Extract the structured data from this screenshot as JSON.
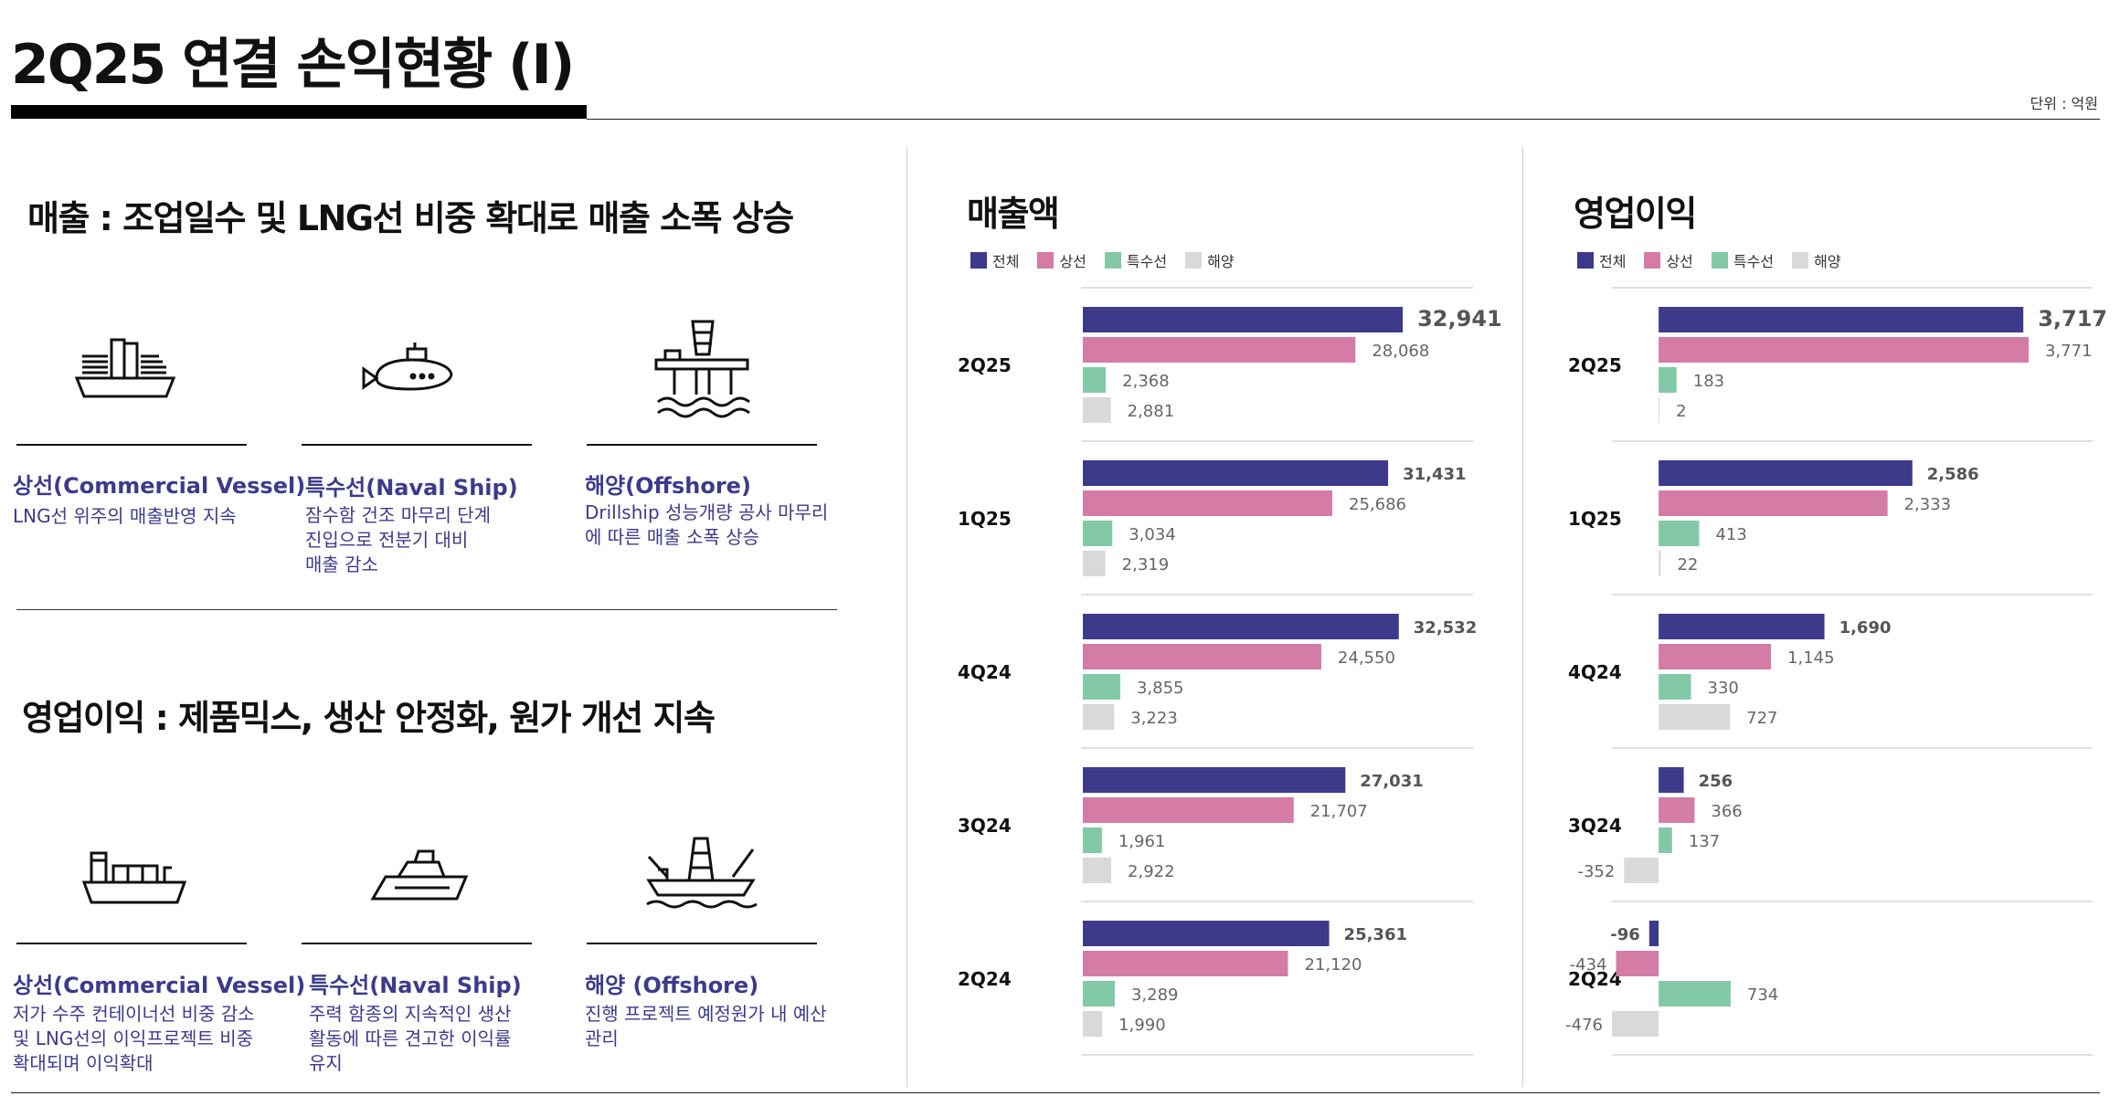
{
  "page": {
    "title": "2Q25 연결 손익현황 (Ⅰ)",
    "unit": "단위 : 억원"
  },
  "sections": {
    "revenue": {
      "headline": "매출 : 조업일수 및 LNG선 비중 확대로 매출 소폭 상승",
      "segments": [
        {
          "title": "상선(Commercial Vessel)",
          "desc": [
            "LNG선 위주의 매출반영 지속"
          ],
          "icon": "commercial-vessel-icon"
        },
        {
          "title": "특수선(Naval Ship)",
          "desc": [
            "잠수함 건조 마무리 단계",
            "진입으로 전분기 대비",
            "매출 감소"
          ],
          "icon": "submarine-icon"
        },
        {
          "title": "해양(Offshore)",
          "desc": [
            "Drillship 성능개량 공사 마무리",
            "에 따른 매출 소폭 상승"
          ],
          "icon": "offshore-platform-icon"
        }
      ]
    },
    "op_income": {
      "headline": "영업이익 : 제품믹스, 생산 안정화, 원가 개선 지속",
      "segments": [
        {
          "title": "상선(Commercial Vessel)",
          "desc": [
            "저가 수주 컨테이너선 비중 감소",
            "및 LNG선의 이익프로젝트 비중",
            "확대되며 이익확대"
          ],
          "icon": "container-ship-icon"
        },
        {
          "title": "특수선(Naval Ship)",
          "desc": [
            "주력 함종의 지속적인 생산",
            "활동에 따른 견고한 이익률",
            "유지"
          ],
          "icon": "naval-ship-icon"
        },
        {
          "title": "해양 (Offshore)",
          "desc": [
            "진행 프로젝트 예정원가 내 예산",
            "관리"
          ],
          "icon": "drillship-icon"
        }
      ]
    }
  },
  "colors": {
    "total": "#3d3a8c",
    "commercial": "#d47ba6",
    "naval": "#84c9a7",
    "offshore": "#d9d9d9",
    "segment_text": "#3d3a8c"
  },
  "chart_data": [
    {
      "type": "bar",
      "title": "매출액",
      "legend": [
        "전체",
        "상선",
        "특수선",
        "해양"
      ],
      "categories": [
        "2Q25",
        "1Q25",
        "4Q24",
        "3Q24",
        "2Q24"
      ],
      "series": [
        {
          "name": "전체",
          "values": [
            32941,
            31431,
            32532,
            27031,
            25361
          ]
        },
        {
          "name": "상선",
          "values": [
            28068,
            25686,
            24550,
            21707,
            21120
          ]
        },
        {
          "name": "특수선",
          "values": [
            2368,
            3034,
            3855,
            1961,
            3289
          ]
        },
        {
          "name": "해양",
          "values": [
            2881,
            2319,
            3223,
            2922,
            1990
          ]
        }
      ],
      "labels": [
        [
          "32,941",
          "28,068",
          "2,368",
          "2,881"
        ],
        [
          "31,431",
          "25,686",
          "3,034",
          "2,319"
        ],
        [
          "32,532",
          "24,550",
          "3,855",
          "3,223"
        ],
        [
          "27,031",
          "21,707",
          "1,961",
          "2,922"
        ],
        [
          "25,361",
          "21,120",
          "3,289",
          "1,990"
        ]
      ],
      "xlim": [
        0,
        35000
      ]
    },
    {
      "type": "bar",
      "title": "영업이익",
      "legend": [
        "전체",
        "상선",
        "특수선",
        "해양"
      ],
      "categories": [
        "2Q25",
        "1Q25",
        "4Q24",
        "3Q24",
        "2Q24"
      ],
      "series": [
        {
          "name": "전체",
          "values": [
            3717,
            2586,
            1690,
            256,
            -96
          ]
        },
        {
          "name": "상선",
          "values": [
            3771,
            2333,
            1145,
            366,
            -434
          ]
        },
        {
          "name": "특수선",
          "values": [
            183,
            413,
            330,
            137,
            734
          ]
        },
        {
          "name": "해양",
          "values": [
            2,
            22,
            727,
            -352,
            -476
          ]
        }
      ],
      "labels": [
        [
          "3,717",
          "3,771",
          "183",
          "2"
        ],
        [
          "2,586",
          "2,333",
          "413",
          "22"
        ],
        [
          "1,690",
          "1,145",
          "330",
          "727"
        ],
        [
          "256",
          "366",
          "137",
          "-352"
        ],
        [
          "-96",
          "-434",
          "734",
          "-476"
        ]
      ],
      "xlim": [
        -476,
        3771
      ]
    }
  ]
}
